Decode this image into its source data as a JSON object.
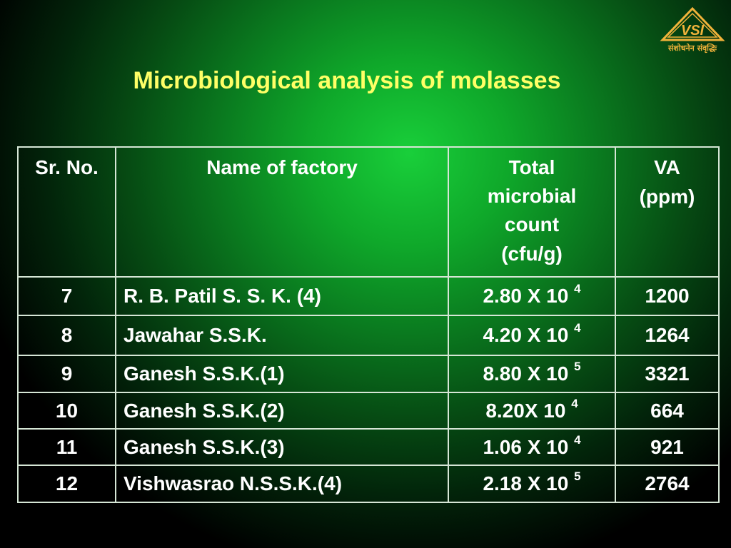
{
  "logo": {
    "mark": "VSI",
    "tagline": "संशोधनेन संवृद्धिः"
  },
  "title": "Microbiological analysis of molasses",
  "table": {
    "headers": {
      "sr_no": "Sr. No.",
      "factory": "Name of factory",
      "count_lines": [
        "Total",
        "microbial",
        "count",
        "(cfu/g)"
      ],
      "va_lines": [
        "VA",
        "(ppm)"
      ]
    },
    "rows": [
      {
        "sr": "7",
        "factory": "R. B. Patil S. S. K. (4)",
        "mantissa": "2.80 X 10 ",
        "exp": "4",
        "va": "1200"
      },
      {
        "sr": "8",
        "factory": "Jawahar S.S.K.",
        "mantissa": "4.20 X 10 ",
        "exp": "4",
        "va": "1264"
      },
      {
        "sr": "9",
        "factory": "Ganesh S.S.K.(1)",
        "mantissa": "8.80 X 10 ",
        "exp": "5",
        "va": "3321"
      },
      {
        "sr": "10",
        "factory": "Ganesh  S.S.K.(2)",
        "mantissa": "8.20X 10 ",
        "exp": "4",
        "va": "664"
      },
      {
        "sr": "11",
        "factory": "Ganesh  S.S.K.(3)",
        "mantissa": "1.06 X 10 ",
        "exp": "4",
        "va": "921"
      },
      {
        "sr": "12",
        "factory": "Vishwasrao N.S.S.K.(4)",
        "mantissa": "2.18 X 10 ",
        "exp": "5",
        "va": "2764"
      }
    ]
  },
  "colors": {
    "title": "#ffff66",
    "logo": "#f1b23a",
    "text": "#ffffff"
  }
}
